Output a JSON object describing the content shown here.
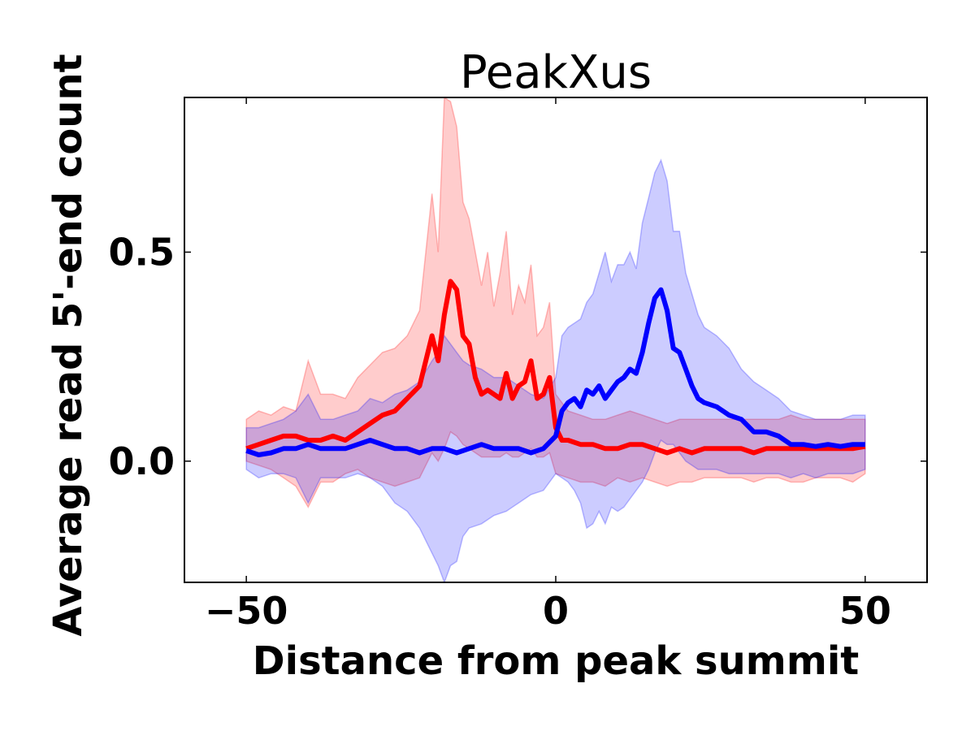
{
  "chart_data": {
    "type": "line",
    "title": "PeakXus",
    "xlabel": "Distance from peak summit",
    "ylabel": "Average read 5'-end count",
    "xlim": [
      -60,
      60
    ],
    "ylim": [
      -0.29,
      0.87
    ],
    "xticks": [
      {
        "value": -50,
        "label": "−50"
      },
      {
        "value": 0,
        "label": "0"
      },
      {
        "value": 50,
        "label": "50"
      }
    ],
    "yticks": [
      {
        "value": 0.0,
        "label": "0.0"
      },
      {
        "value": 0.5,
        "label": "0.5"
      }
    ],
    "grid": false,
    "series": [
      {
        "color": "#ff0000",
        "band_color": "#ff0000",
        "points": [
          [
            -50,
            0.03
          ],
          [
            -48,
            0.04
          ],
          [
            -46,
            0.05
          ],
          [
            -44,
            0.06
          ],
          [
            -42,
            0.06
          ],
          [
            -40,
            0.05
          ],
          [
            -38,
            0.05
          ],
          [
            -36,
            0.06
          ],
          [
            -34,
            0.05
          ],
          [
            -32,
            0.07
          ],
          [
            -30,
            0.09
          ],
          [
            -28,
            0.11
          ],
          [
            -26,
            0.12
          ],
          [
            -24,
            0.15
          ],
          [
            -22,
            0.18
          ],
          [
            -20,
            0.3
          ],
          [
            -19,
            0.24
          ],
          [
            -18,
            0.35
          ],
          [
            -17,
            0.43
          ],
          [
            -16,
            0.41
          ],
          [
            -15,
            0.3
          ],
          [
            -14,
            0.28
          ],
          [
            -13,
            0.2
          ],
          [
            -12,
            0.16
          ],
          [
            -11,
            0.17
          ],
          [
            -10,
            0.16
          ],
          [
            -9,
            0.15
          ],
          [
            -8,
            0.21
          ],
          [
            -7,
            0.15
          ],
          [
            -6,
            0.18
          ],
          [
            -5,
            0.19
          ],
          [
            -4,
            0.24
          ],
          [
            -3,
            0.15
          ],
          [
            -2,
            0.16
          ],
          [
            -1,
            0.2
          ],
          [
            0,
            0.08
          ],
          [
            1,
            0.05
          ],
          [
            2,
            0.05
          ],
          [
            4,
            0.04
          ],
          [
            6,
            0.04
          ],
          [
            8,
            0.03
          ],
          [
            10,
            0.03
          ],
          [
            12,
            0.04
          ],
          [
            14,
            0.04
          ],
          [
            16,
            0.03
          ],
          [
            18,
            0.02
          ],
          [
            20,
            0.03
          ],
          [
            22,
            0.02
          ],
          [
            24,
            0.03
          ],
          [
            26,
            0.03
          ],
          [
            28,
            0.03
          ],
          [
            30,
            0.03
          ],
          [
            32,
            0.02
          ],
          [
            34,
            0.03
          ],
          [
            36,
            0.03
          ],
          [
            38,
            0.03
          ],
          [
            40,
            0.03
          ],
          [
            42,
            0.03
          ],
          [
            44,
            0.03
          ],
          [
            46,
            0.03
          ],
          [
            48,
            0.03
          ],
          [
            50,
            0.035
          ]
        ],
        "band": [
          [
            -50,
            0.0,
            0.1
          ],
          [
            -48,
            -0.01,
            0.12
          ],
          [
            -46,
            -0.02,
            0.11
          ],
          [
            -44,
            -0.04,
            0.13
          ],
          [
            -42,
            -0.06,
            0.12
          ],
          [
            -40,
            -0.11,
            0.24
          ],
          [
            -38,
            -0.05,
            0.16
          ],
          [
            -36,
            -0.05,
            0.16
          ],
          [
            -34,
            -0.03,
            0.15
          ],
          [
            -32,
            -0.02,
            0.2
          ],
          [
            -30,
            -0.04,
            0.23
          ],
          [
            -28,
            -0.05,
            0.26
          ],
          [
            -26,
            -0.06,
            0.27
          ],
          [
            -24,
            -0.05,
            0.3
          ],
          [
            -22,
            -0.04,
            0.36
          ],
          [
            -20,
            0.02,
            0.64
          ],
          [
            -19,
            0.0,
            0.5
          ],
          [
            -18,
            0.03,
            0.87
          ],
          [
            -17,
            0.07,
            0.86
          ],
          [
            -16,
            0.06,
            0.8
          ],
          [
            -15,
            0.04,
            0.62
          ],
          [
            -14,
            0.03,
            0.58
          ],
          [
            -13,
            0.02,
            0.5
          ],
          [
            -12,
            0.01,
            0.42
          ],
          [
            -11,
            0.01,
            0.5
          ],
          [
            -10,
            0.01,
            0.37
          ],
          [
            -9,
            0.01,
            0.45
          ],
          [
            -8,
            0.02,
            0.55
          ],
          [
            -7,
            0.01,
            0.35
          ],
          [
            -6,
            0.01,
            0.42
          ],
          [
            -5,
            0.02,
            0.38
          ],
          [
            -4,
            0.03,
            0.47
          ],
          [
            -3,
            0.01,
            0.3
          ],
          [
            -2,
            0.01,
            0.32
          ],
          [
            -1,
            0.02,
            0.38
          ],
          [
            0,
            -0.03,
            0.16
          ],
          [
            2,
            -0.04,
            0.12
          ],
          [
            4,
            -0.05,
            0.11
          ],
          [
            6,
            -0.05,
            0.1
          ],
          [
            8,
            -0.06,
            0.1
          ],
          [
            10,
            -0.04,
            0.11
          ],
          [
            12,
            -0.05,
            0.12
          ],
          [
            14,
            -0.04,
            0.11
          ],
          [
            16,
            -0.05,
            0.1
          ],
          [
            18,
            -0.06,
            0.09
          ],
          [
            20,
            -0.05,
            0.1
          ],
          [
            22,
            -0.05,
            0.1
          ],
          [
            24,
            -0.04,
            0.1
          ],
          [
            26,
            -0.04,
            0.1
          ],
          [
            28,
            -0.04,
            0.1
          ],
          [
            30,
            -0.04,
            0.1
          ],
          [
            32,
            -0.05,
            0.1
          ],
          [
            34,
            -0.04,
            0.1
          ],
          [
            36,
            -0.04,
            0.1
          ],
          [
            38,
            -0.05,
            0.11
          ],
          [
            40,
            -0.05,
            0.1
          ],
          [
            42,
            -0.04,
            0.1
          ],
          [
            44,
            -0.04,
            0.1
          ],
          [
            46,
            -0.04,
            0.1
          ],
          [
            48,
            -0.05,
            0.1
          ],
          [
            50,
            -0.03,
            0.1
          ]
        ]
      },
      {
        "color": "#0000ff",
        "band_color": "#0000ff",
        "points": [
          [
            -50,
            0.025
          ],
          [
            -48,
            0.015
          ],
          [
            -46,
            0.02
          ],
          [
            -44,
            0.03
          ],
          [
            -42,
            0.03
          ],
          [
            -40,
            0.04
          ],
          [
            -38,
            0.03
          ],
          [
            -36,
            0.03
          ],
          [
            -34,
            0.03
          ],
          [
            -32,
            0.04
          ],
          [
            -30,
            0.05
          ],
          [
            -28,
            0.04
          ],
          [
            -26,
            0.03
          ],
          [
            -24,
            0.03
          ],
          [
            -22,
            0.02
          ],
          [
            -20,
            0.03
          ],
          [
            -18,
            0.03
          ],
          [
            -16,
            0.02
          ],
          [
            -14,
            0.03
          ],
          [
            -12,
            0.04
          ],
          [
            -10,
            0.03
          ],
          [
            -8,
            0.03
          ],
          [
            -6,
            0.03
          ],
          [
            -4,
            0.02
          ],
          [
            -2,
            0.03
          ],
          [
            0,
            0.06
          ],
          [
            1,
            0.12
          ],
          [
            2,
            0.14
          ],
          [
            3,
            0.15
          ],
          [
            4,
            0.13
          ],
          [
            5,
            0.17
          ],
          [
            6,
            0.16
          ],
          [
            7,
            0.18
          ],
          [
            8,
            0.15
          ],
          [
            9,
            0.17
          ],
          [
            10,
            0.19
          ],
          [
            11,
            0.2
          ],
          [
            12,
            0.22
          ],
          [
            13,
            0.21
          ],
          [
            14,
            0.26
          ],
          [
            15,
            0.33
          ],
          [
            16,
            0.39
          ],
          [
            17,
            0.41
          ],
          [
            18,
            0.36
          ],
          [
            19,
            0.27
          ],
          [
            20,
            0.26
          ],
          [
            21,
            0.22
          ],
          [
            22,
            0.18
          ],
          [
            23,
            0.15
          ],
          [
            24,
            0.14
          ],
          [
            26,
            0.13
          ],
          [
            28,
            0.11
          ],
          [
            30,
            0.1
          ],
          [
            32,
            0.07
          ],
          [
            34,
            0.07
          ],
          [
            36,
            0.06
          ],
          [
            38,
            0.04
          ],
          [
            40,
            0.04
          ],
          [
            42,
            0.035
          ],
          [
            44,
            0.04
          ],
          [
            46,
            0.035
          ],
          [
            48,
            0.04
          ],
          [
            50,
            0.04
          ]
        ],
        "band": [
          [
            -50,
            -0.02,
            0.08
          ],
          [
            -48,
            -0.04,
            0.08
          ],
          [
            -46,
            -0.03,
            0.09
          ],
          [
            -44,
            -0.03,
            0.1
          ],
          [
            -42,
            -0.04,
            0.12
          ],
          [
            -40,
            -0.1,
            0.16
          ],
          [
            -38,
            -0.04,
            0.1
          ],
          [
            -36,
            -0.04,
            0.1
          ],
          [
            -34,
            -0.04,
            0.11
          ],
          [
            -32,
            -0.03,
            0.12
          ],
          [
            -30,
            -0.04,
            0.15
          ],
          [
            -28,
            -0.06,
            0.14
          ],
          [
            -26,
            -0.1,
            0.16
          ],
          [
            -24,
            -0.12,
            0.17
          ],
          [
            -22,
            -0.16,
            0.19
          ],
          [
            -20,
            -0.22,
            0.24
          ],
          [
            -19,
            -0.25,
            0.26
          ],
          [
            -18,
            -0.29,
            0.3
          ],
          [
            -17,
            -0.25,
            0.28
          ],
          [
            -16,
            -0.24,
            0.26
          ],
          [
            -15,
            -0.18,
            0.24
          ],
          [
            -14,
            -0.16,
            0.23
          ],
          [
            -12,
            -0.15,
            0.22
          ],
          [
            -10,
            -0.13,
            0.2
          ],
          [
            -8,
            -0.12,
            0.2
          ],
          [
            -6,
            -0.1,
            0.18
          ],
          [
            -4,
            -0.08,
            0.16
          ],
          [
            -2,
            -0.07,
            0.15
          ],
          [
            0,
            -0.03,
            0.2
          ],
          [
            1,
            -0.04,
            0.3
          ],
          [
            2,
            -0.05,
            0.32
          ],
          [
            3,
            -0.07,
            0.33
          ],
          [
            4,
            -0.1,
            0.34
          ],
          [
            5,
            -0.16,
            0.38
          ],
          [
            6,
            -0.15,
            0.4
          ],
          [
            7,
            -0.12,
            0.45
          ],
          [
            8,
            -0.15,
            0.5
          ],
          [
            9,
            -0.11,
            0.43
          ],
          [
            10,
            -0.12,
            0.47
          ],
          [
            11,
            -0.11,
            0.47
          ],
          [
            12,
            -0.09,
            0.5
          ],
          [
            13,
            -0.07,
            0.46
          ],
          [
            14,
            -0.05,
            0.57
          ],
          [
            15,
            -0.02,
            0.63
          ],
          [
            16,
            0.02,
            0.69
          ],
          [
            17,
            0.05,
            0.72
          ],
          [
            18,
            0.04,
            0.67
          ],
          [
            19,
            0.04,
            0.55
          ],
          [
            20,
            0.02,
            0.55
          ],
          [
            21,
            0.0,
            0.45
          ],
          [
            22,
            -0.01,
            0.4
          ],
          [
            23,
            -0.02,
            0.35
          ],
          [
            24,
            -0.02,
            0.32
          ],
          [
            26,
            -0.02,
            0.3
          ],
          [
            28,
            -0.03,
            0.27
          ],
          [
            30,
            -0.03,
            0.22
          ],
          [
            32,
            -0.03,
            0.19
          ],
          [
            34,
            -0.03,
            0.17
          ],
          [
            36,
            -0.03,
            0.15
          ],
          [
            38,
            -0.04,
            0.12
          ],
          [
            40,
            -0.03,
            0.11
          ],
          [
            42,
            -0.04,
            0.1
          ],
          [
            44,
            -0.03,
            0.1
          ],
          [
            46,
            -0.03,
            0.1
          ],
          [
            48,
            -0.03,
            0.11
          ],
          [
            50,
            -0.02,
            0.11
          ]
        ]
      }
    ]
  }
}
